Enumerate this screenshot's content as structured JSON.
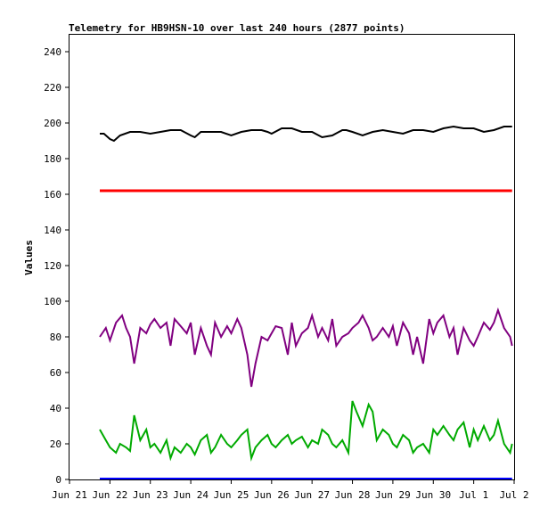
{
  "chart_data": {
    "type": "line",
    "title": "Telemetry for HB9HSN-10 over last 240 hours (2877 points)",
    "ylabel": "Values",
    "xlabel": "",
    "ylim": [
      0,
      250
    ],
    "xlim": [
      "Jun 21",
      "Jul 2"
    ],
    "grid": false,
    "legend": "none",
    "yticks": [
      0,
      20,
      40,
      60,
      80,
      100,
      120,
      140,
      160,
      180,
      200,
      220,
      240
    ],
    "xticks": [
      "Jun 21",
      "Jun 22",
      "Jun 23",
      "Jun 24",
      "Jun 25",
      "Jun 26",
      "Jun 27",
      "Jun 28",
      "Jun 29",
      "Jun 30",
      "Jul 1",
      "Jul 2"
    ],
    "series": [
      {
        "color": "#000000",
        "x": [
          0.75,
          0.85,
          1.0,
          1.1,
          1.25,
          1.5,
          1.75,
          2.0,
          2.25,
          2.5,
          2.75,
          3.0,
          3.1,
          3.25,
          3.5,
          3.75,
          4.0,
          4.25,
          4.5,
          4.75,
          4.9,
          5.0,
          5.25,
          5.5,
          5.75,
          6.0,
          6.25,
          6.5,
          6.75,
          6.85,
          7.0,
          7.25,
          7.5,
          7.75,
          8.0,
          8.25,
          8.5,
          8.75,
          9.0,
          9.25,
          9.5,
          9.75,
          10.0,
          10.25,
          10.5,
          10.75,
          10.95
        ],
        "y": [
          194,
          194,
          191,
          190,
          193,
          195,
          195,
          194,
          195,
          196,
          196,
          193,
          192,
          195,
          195,
          195,
          193,
          195,
          196,
          196,
          195,
          194,
          197,
          197,
          195,
          195,
          192,
          193,
          196,
          196,
          195,
          193,
          195,
          196,
          195,
          194,
          196,
          196,
          195,
          197,
          198,
          197,
          197,
          195,
          196,
          198,
          198
        ]
      },
      {
        "color": "#ff0000",
        "x": [
          0.75,
          10.95
        ],
        "y": [
          162,
          162
        ]
      },
      {
        "color": "#800080",
        "x": [
          0.75,
          0.9,
          1.0,
          1.15,
          1.3,
          1.4,
          1.5,
          1.6,
          1.75,
          1.9,
          2.0,
          2.1,
          2.25,
          2.4,
          2.5,
          2.6,
          2.75,
          2.9,
          3.0,
          3.1,
          3.25,
          3.4,
          3.5,
          3.6,
          3.75,
          3.9,
          4.0,
          4.15,
          4.25,
          4.4,
          4.5,
          4.6,
          4.75,
          4.9,
          5.0,
          5.1,
          5.25,
          5.4,
          5.5,
          5.6,
          5.75,
          5.9,
          6.0,
          6.15,
          6.25,
          6.4,
          6.5,
          6.6,
          6.75,
          6.9,
          7.0,
          7.15,
          7.25,
          7.4,
          7.5,
          7.6,
          7.75,
          7.9,
          8.0,
          8.1,
          8.25,
          8.4,
          8.5,
          8.6,
          8.75,
          8.9,
          9.0,
          9.1,
          9.25,
          9.4,
          9.5,
          9.6,
          9.75,
          9.9,
          10.0,
          10.1,
          10.25,
          10.4,
          10.5,
          10.6,
          10.75,
          10.9,
          10.95
        ],
        "y": [
          80,
          85,
          78,
          88,
          92,
          85,
          80,
          65,
          85,
          82,
          87,
          90,
          85,
          88,
          75,
          90,
          86,
          82,
          88,
          70,
          85,
          75,
          70,
          88,
          80,
          86,
          82,
          90,
          85,
          70,
          52,
          65,
          80,
          78,
          82,
          86,
          85,
          70,
          88,
          75,
          82,
          85,
          92,
          80,
          85,
          78,
          90,
          75,
          80,
          82,
          85,
          88,
          92,
          85,
          78,
          80,
          85,
          80,
          86,
          75,
          88,
          82,
          70,
          80,
          65,
          90,
          82,
          88,
          92,
          80,
          85,
          70,
          85,
          78,
          75,
          80,
          88,
          84,
          88,
          95,
          85,
          80,
          75
        ]
      },
      {
        "color": "#00aa00",
        "x": [
          0.75,
          0.9,
          1.0,
          1.15,
          1.25,
          1.4,
          1.5,
          1.6,
          1.75,
          1.9,
          2.0,
          2.1,
          2.25,
          2.4,
          2.5,
          2.6,
          2.75,
          2.9,
          3.0,
          3.1,
          3.25,
          3.4,
          3.5,
          3.6,
          3.75,
          3.9,
          4.0,
          4.15,
          4.25,
          4.4,
          4.5,
          4.6,
          4.75,
          4.9,
          5.0,
          5.1,
          5.25,
          5.4,
          5.5,
          5.6,
          5.75,
          5.9,
          6.0,
          6.15,
          6.25,
          6.4,
          6.5,
          6.6,
          6.75,
          6.9,
          7.0,
          7.1,
          7.25,
          7.4,
          7.5,
          7.6,
          7.75,
          7.9,
          8.0,
          8.1,
          8.25,
          8.4,
          8.5,
          8.6,
          8.75,
          8.9,
          9.0,
          9.1,
          9.25,
          9.4,
          9.5,
          9.6,
          9.75,
          9.9,
          10.0,
          10.1,
          10.25,
          10.4,
          10.5,
          10.6,
          10.75,
          10.9,
          10.95
        ],
        "y": [
          28,
          22,
          18,
          15,
          20,
          18,
          16,
          36,
          22,
          28,
          18,
          20,
          15,
          22,
          12,
          18,
          15,
          20,
          18,
          14,
          22,
          25,
          15,
          18,
          25,
          20,
          18,
          22,
          25,
          28,
          12,
          18,
          22,
          25,
          20,
          18,
          22,
          25,
          20,
          22,
          24,
          18,
          22,
          20,
          28,
          25,
          20,
          18,
          22,
          15,
          44,
          38,
          30,
          42,
          38,
          22,
          28,
          25,
          20,
          18,
          25,
          22,
          15,
          18,
          20,
          15,
          28,
          25,
          30,
          25,
          22,
          28,
          32,
          18,
          28,
          22,
          30,
          22,
          25,
          33,
          20,
          15,
          20
        ]
      },
      {
        "color": "#0000ff",
        "x": [
          0.75,
          10.95
        ],
        "y": [
          0.5,
          0.5
        ]
      }
    ]
  }
}
